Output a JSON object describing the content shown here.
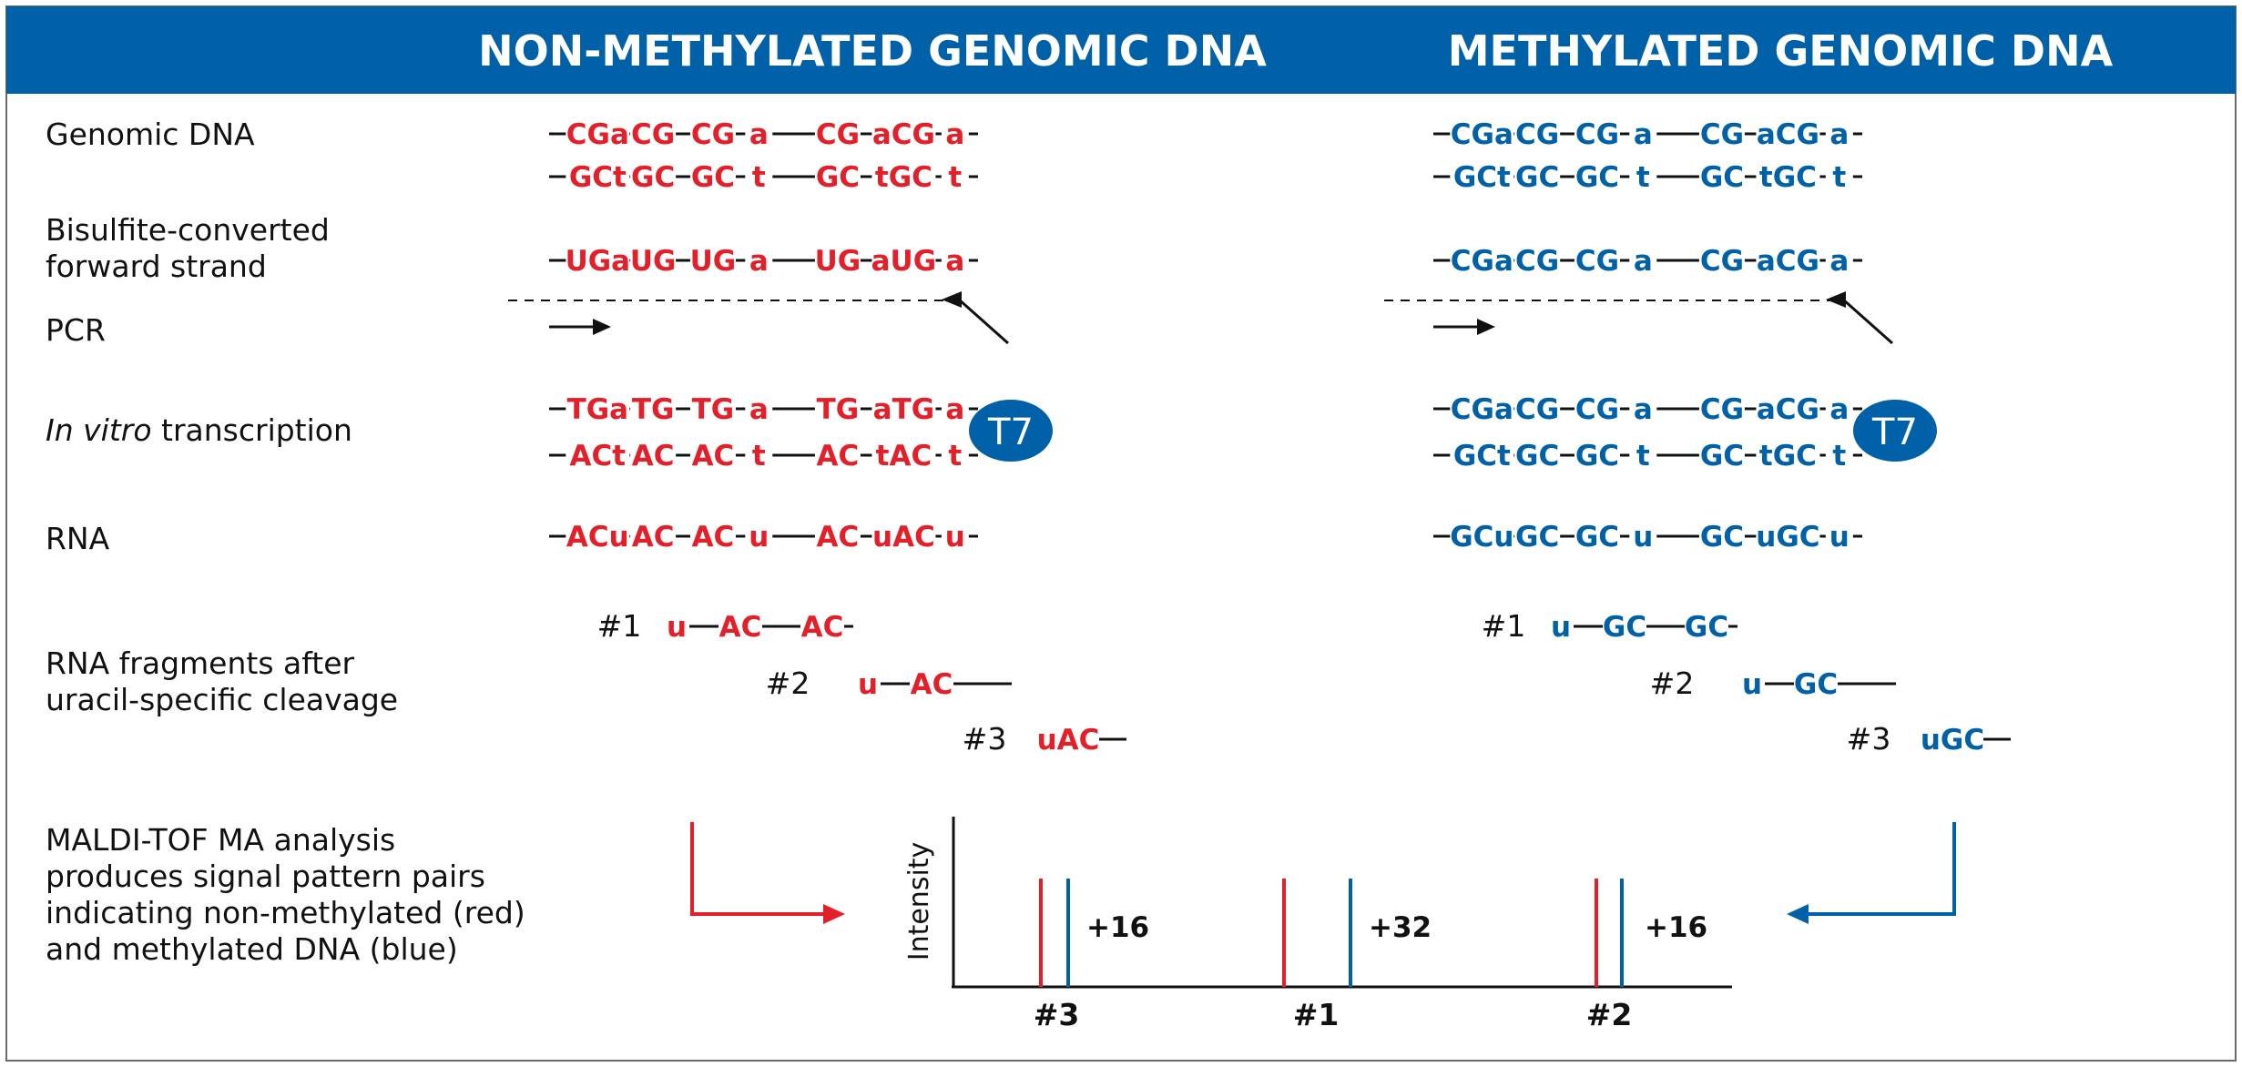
{
  "colors": {
    "header_bg": "#0061a8",
    "header_text": "#ffffff",
    "non_methylated": "#e3202a",
    "methylated": "#0061a8",
    "line": "#111111",
    "border": "#6a6a6a",
    "t7_bg": "#0061a8"
  },
  "header": {
    "non_methylated_title": "NON-METHYLATED GENOMIC DNA",
    "methylated_title": "METHYLATED GENOMIC DNA"
  },
  "rows": {
    "genomic_dna": "Genomic DNA",
    "bisulfite_line1": "Bisulfite-converted",
    "bisulfite_line2": "forward strand",
    "pcr": "PCR",
    "ivt_italic": "In vitro",
    "ivt_rest": " transcription",
    "rna": "RNA",
    "fragments_line1": "RNA fragments after",
    "fragments_line2": "uracil-specific cleavage",
    "maldi_line1": "MALDI-TOF MA analysis",
    "maldi_line2": "produces signal pattern pairs",
    "maldi_line3": "indicating non-methylated (red)",
    "maldi_line4": "and methylated DNA (blue)"
  },
  "panels": {
    "non_methylated": {
      "genomic_top": [
        "CGa",
        "CG",
        "CG",
        "a",
        "CG",
        "aCG",
        "a"
      ],
      "genomic_bottom": [
        "GCt",
        "GC",
        "GC",
        "t",
        "GC",
        "tGC",
        "t"
      ],
      "bisulfite": [
        "UGa",
        "UG",
        "UG",
        "a",
        "UG",
        "aUG",
        "a"
      ],
      "ivt_top": [
        "TGa",
        "TG",
        "TG",
        "a",
        "TG",
        "aTG",
        "a"
      ],
      "ivt_bottom": [
        "ACt",
        "AC",
        "AC",
        "t",
        "AC",
        "tAC",
        "t"
      ],
      "rna": [
        "ACu",
        "AC",
        "AC",
        "u",
        "AC",
        "uAC",
        "u"
      ],
      "t7": "T7",
      "fragments": [
        {
          "label": "#1",
          "seq": [
            "u",
            "AC",
            "AC"
          ]
        },
        {
          "label": "#2",
          "seq": [
            "u",
            "AC"
          ]
        },
        {
          "label": "#3",
          "seq": [
            "uAC"
          ]
        }
      ]
    },
    "methylated": {
      "genomic_top": [
        "CGa",
        "CG",
        "CG",
        "a",
        "CG",
        "aCG",
        "a"
      ],
      "genomic_bottom": [
        "GCt",
        "GC",
        "GC",
        "t",
        "GC",
        "tGC",
        "t"
      ],
      "bisulfite": [
        "CGa",
        "CG",
        "CG",
        "a",
        "CG",
        "aCG",
        "a"
      ],
      "ivt_top": [
        "CGa",
        "CG",
        "CG",
        "a",
        "CG",
        "aCG",
        "a"
      ],
      "ivt_bottom": [
        "GCt",
        "GC",
        "GC",
        "t",
        "GC",
        "tGC",
        "t"
      ],
      "rna": [
        "GCu",
        "GC",
        "GC",
        "u",
        "GC",
        "uGC",
        "u"
      ],
      "t7": "T7",
      "fragments": [
        {
          "label": "#1",
          "seq": [
            "u",
            "GC",
            "GC"
          ]
        },
        {
          "label": "#2",
          "seq": [
            "u",
            "GC"
          ]
        },
        {
          "label": "#3",
          "seq": [
            "uGC"
          ]
        }
      ]
    }
  },
  "spectrum": {
    "ylabel": "Intensity",
    "peaks": [
      {
        "label": "#3",
        "delta": "+16"
      },
      {
        "label": "#1",
        "delta": "+32"
      },
      {
        "label": "#2",
        "delta": "+16"
      }
    ]
  }
}
